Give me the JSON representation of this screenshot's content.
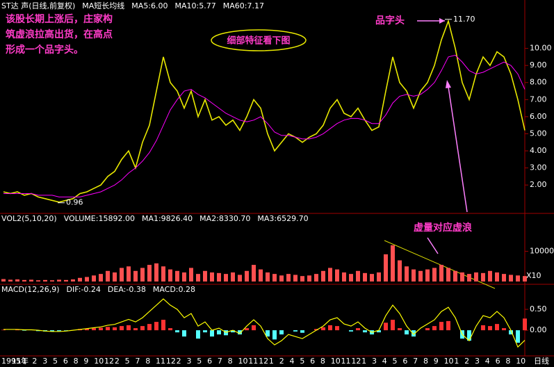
{
  "annotations": {
    "note_lines": [
      "该股长期上涨后，庄家构",
      "筑虚浪拉高出货，在高点",
      "形成一个品字头。"
    ],
    "badge": "细部特征看下图",
    "top_label": "品字头",
    "volume_label": "虚量对应虚浪"
  },
  "x_labels": [
    "1995年",
    "11",
    "1",
    "2",
    "3",
    "5",
    "6",
    "8",
    "9",
    "10",
    "12",
    "2",
    "5",
    "7",
    "8",
    "11",
    "12",
    "2",
    "3",
    "5",
    "6",
    "7",
    "8",
    "10",
    "11",
    "12",
    "1",
    "2",
    "4",
    "5",
    "6",
    "8",
    "10",
    "11",
    "12",
    "1",
    "3",
    "4",
    "5",
    "6",
    "7",
    "8",
    "9",
    "10",
    "1",
    "2",
    "3",
    "4",
    "6",
    "8",
    "10"
  ],
  "timeframe": "日线",
  "chart_data": [
    {
      "type": "line",
      "legend": [
        {
          "label": "ST达 声(日线,前复权)",
          "color": "#ffffff"
        },
        {
          "label": "MA短长均线",
          "color": "#ffffff"
        },
        {
          "label": "MA5:6.00",
          "color": "#ffffff"
        },
        {
          "label": "MA10:5.77",
          "color": "#ffff00"
        },
        {
          "label": "MA60:7.17",
          "color": "#ff00ff"
        }
      ],
      "ylim": [
        0.42,
        12.1
      ],
      "yticks": [
        {
          "value": 2,
          "label": "2.00"
        },
        {
          "value": 3,
          "label": "3.00"
        },
        {
          "value": 4,
          "label": "4.00"
        },
        {
          "value": 5,
          "label": "5.00"
        },
        {
          "value": 6,
          "label": "6.00"
        },
        {
          "value": 7,
          "label": "7.00"
        },
        {
          "value": 8,
          "label": "8.00"
        },
        {
          "value": 9,
          "label": "9.00"
        },
        {
          "value": 10,
          "label": "10.00"
        }
      ],
      "price_labels": [
        {
          "value": 11.7,
          "label": "11.70"
        },
        {
          "value": 0.96,
          "label": "0.96"
        }
      ],
      "series": [
        {
          "color": "#e8e800",
          "values": [
            1.6,
            1.5,
            1.6,
            1.4,
            1.5,
            1.3,
            1.2,
            1.1,
            1.0,
            1.1,
            1.2,
            1.5,
            1.6,
            1.8,
            2.0,
            2.5,
            2.8,
            3.5,
            4.0,
            3.0,
            4.5,
            5.5,
            7.5,
            9.5,
            8.0,
            7.5,
            6.5,
            7.5,
            6.0,
            7.0,
            5.8,
            6.0,
            5.5,
            5.8,
            5.2,
            6.0,
            7.0,
            6.5,
            5.0,
            4.0,
            4.5,
            5.0,
            4.8,
            4.5,
            4.8,
            5.0,
            5.5,
            6.5,
            7.0,
            6.2,
            6.0,
            6.5,
            5.8,
            5.2,
            5.4,
            7.5,
            9.5,
            8.0,
            7.5,
            6.5,
            7.5,
            8.0,
            9.0,
            10.5,
            11.6,
            10.0,
            8.0,
            7.0,
            8.5,
            9.5,
            9.0,
            9.8,
            9.5,
            8.5,
            7.0,
            5.2
          ]
        },
        {
          "color": "#ff00ff",
          "values": [
            1.5,
            1.5,
            1.5,
            1.5,
            1.5,
            1.4,
            1.4,
            1.4,
            1.3,
            1.3,
            1.3,
            1.3,
            1.4,
            1.5,
            1.6,
            1.8,
            2.0,
            2.3,
            2.7,
            3.0,
            3.4,
            3.9,
            4.6,
            5.5,
            6.4,
            7.0,
            7.5,
            7.6,
            7.3,
            7.1,
            6.8,
            6.5,
            6.2,
            6.0,
            5.8,
            5.7,
            5.8,
            6.0,
            5.6,
            5.1,
            4.9,
            4.9,
            4.8,
            4.7,
            4.7,
            4.8,
            5.0,
            5.3,
            5.6,
            5.8,
            5.9,
            5.9,
            5.8,
            5.6,
            5.6,
            6.1,
            6.8,
            7.2,
            7.3,
            7.2,
            7.3,
            7.6,
            8.0,
            8.7,
            9.5,
            9.6,
            9.2,
            8.7,
            8.5,
            8.6,
            8.8,
            9.0,
            9.2,
            9.0,
            8.5,
            7.6
          ]
        }
      ]
    },
    {
      "type": "bar",
      "legend": [
        {
          "label": "VOL2(5,10,20)",
          "color": "#ffffff"
        },
        {
          "label": "VOLUME:15892.00",
          "color": "#ffffff"
        },
        {
          "label": "MA1:9826.40",
          "color": "#ffffff"
        },
        {
          "label": "MA2:8330.70",
          "color": "#ffff00"
        },
        {
          "label": "MA3:6529.70",
          "color": "#ff00ff"
        }
      ],
      "ylim": [
        0,
        20000
      ],
      "yticks": [
        10000
      ],
      "unit_label": "X10",
      "color": "#ff5050",
      "values": [
        800,
        600,
        700,
        500,
        600,
        400,
        500,
        400,
        600,
        500,
        700,
        1200,
        1500,
        2000,
        2500,
        3500,
        3000,
        4500,
        5000,
        3500,
        4500,
        5500,
        6000,
        5000,
        4000,
        3500,
        3000,
        4500,
        2500,
        3500,
        3000,
        2800,
        2500,
        3000,
        2200,
        3500,
        5500,
        4000,
        3000,
        2500,
        2000,
        2500,
        2200,
        1800,
        2000,
        2500,
        3500,
        4500,
        4000,
        3000,
        2500,
        3500,
        2800,
        2500,
        3000,
        9000,
        12000,
        7000,
        5000,
        4000,
        3500,
        4000,
        4500,
        5500,
        4500,
        3500,
        3000,
        2500,
        3000,
        2800,
        3500,
        3000,
        2500,
        2200,
        2000,
        1800
      ]
    },
    {
      "type": "bar",
      "legend": [
        {
          "label": "MACD(12,26,9)",
          "color": "#ffffff"
        },
        {
          "label": "DIF:-0.24",
          "color": "#ffffff"
        },
        {
          "label": "DEA:-0.38",
          "color": "#ffff00"
        },
        {
          "label": "MACD:0.28",
          "color": "#ff00ff"
        }
      ],
      "ylim": [
        -0.58,
        0.95
      ],
      "yticks": [
        {
          "value": 0.5,
          "label": "0.50"
        },
        {
          "value": 0,
          "label": "0.00"
        }
      ],
      "positive_color": "#ff3232",
      "negative_color": "#54ffff",
      "values": [
        0.01,
        0,
        0.01,
        -0.01,
        0,
        -0.02,
        -0.03,
        -0.03,
        -0.02,
        -0.01,
        0,
        0.03,
        0.04,
        0.05,
        0.06,
        0.08,
        0.07,
        0.1,
        0.12,
        0.05,
        0.1,
        0.15,
        0.2,
        0.25,
        0.05,
        -0.05,
        -0.15,
        0,
        -0.2,
        -0.05,
        -0.15,
        -0.1,
        -0.12,
        -0.05,
        -0.1,
        0.05,
        0.12,
        0,
        -0.15,
        -0.22,
        -0.1,
        0,
        -0.03,
        -0.06,
        0,
        0.03,
        0.07,
        0.12,
        0.1,
        0,
        -0.03,
        0.05,
        -0.05,
        -0.1,
        -0.05,
        0.18,
        0.25,
        0.05,
        -0.1,
        -0.15,
        0,
        0.05,
        0.1,
        0.2,
        0.22,
        0,
        -0.2,
        -0.25,
        0,
        0.12,
        0.1,
        0.15,
        0.05,
        -0.1,
        -0.3,
        0.28
      ],
      "series": [
        {
          "color": "#ffff00",
          "values": [
            0.02,
            0.02,
            0.02,
            0.01,
            0.01,
            0,
            -0.02,
            -0.03,
            -0.03,
            -0.02,
            0,
            0.02,
            0.04,
            0.06,
            0.08,
            0.12,
            0.14,
            0.2,
            0.26,
            0.2,
            0.3,
            0.45,
            0.6,
            0.75,
            0.6,
            0.5,
            0.3,
            0.4,
            0.1,
            0.2,
            0,
            0.05,
            -0.05,
            0,
            -0.08,
            0.1,
            0.25,
            0.1,
            -0.2,
            -0.35,
            -0.25,
            -0.1,
            -0.15,
            -0.2,
            -0.1,
            0,
            0.1,
            0.25,
            0.3,
            0.15,
            0.1,
            0.2,
            0.05,
            -0.05,
            0,
            0.35,
            0.6,
            0.4,
            0.1,
            -0.1,
            0.05,
            0.15,
            0.25,
            0.45,
            0.55,
            0.3,
            -0.1,
            -0.25,
            0.1,
            0.35,
            0.3,
            0.45,
            0.3,
            0,
            -0.4,
            -0.24
          ]
        }
      ]
    }
  ]
}
